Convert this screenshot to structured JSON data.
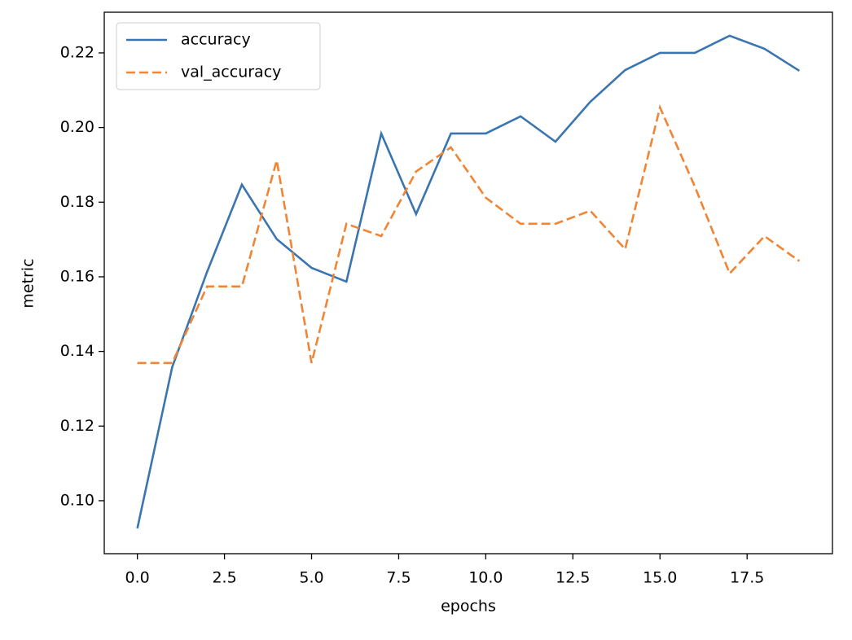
{
  "chart_data": {
    "type": "line",
    "xlabel": "epochs",
    "ylabel": "metric",
    "x": [
      0,
      1,
      2,
      3,
      4,
      5,
      6,
      7,
      8,
      9,
      10,
      11,
      12,
      13,
      14,
      15,
      16,
      17,
      18,
      19
    ],
    "series": [
      {
        "name": "accuracy",
        "color": "#3a75b0",
        "dash": "solid",
        "values": [
          0.0926,
          0.1358,
          0.1613,
          0.1847,
          0.1701,
          0.1624,
          0.1587,
          0.1984,
          0.1768,
          0.1984,
          0.1984,
          0.203,
          0.1962,
          0.2069,
          0.2154,
          0.22,
          0.22,
          0.2246,
          0.2211,
          0.2152
        ]
      },
      {
        "name": "val_accuracy",
        "color": "#ef8535",
        "dash": "dashed",
        "values": [
          0.1369,
          0.1369,
          0.1574,
          0.1574,
          0.1912,
          0.1369,
          0.1742,
          0.1709,
          0.1882,
          0.1947,
          0.1812,
          0.1742,
          0.1742,
          0.1777,
          0.1674,
          0.2054,
          0.1842,
          0.1609,
          0.1709,
          0.1642
        ]
      }
    ],
    "xlim": [
      -0.95,
      19.95
    ],
    "xticks": [
      {
        "value": 0,
        "label": "0.0"
      },
      2.5,
      {
        "value": 5,
        "label": "5.0"
      },
      7.5,
      {
        "value": 10,
        "label": "10.0"
      },
      12.5,
      {
        "value": 15,
        "label": "15.0"
      },
      17.5
    ],
    "ylim": [
      0.0858,
      0.2309
    ],
    "yticks": [
      {
        "value": 0.1,
        "label": "0.10"
      },
      0.12,
      0.14,
      0.16,
      0.18,
      {
        "value": 0.2,
        "label": "0.20"
      },
      0.22
    ],
    "grid": false,
    "legend": "upper left"
  }
}
